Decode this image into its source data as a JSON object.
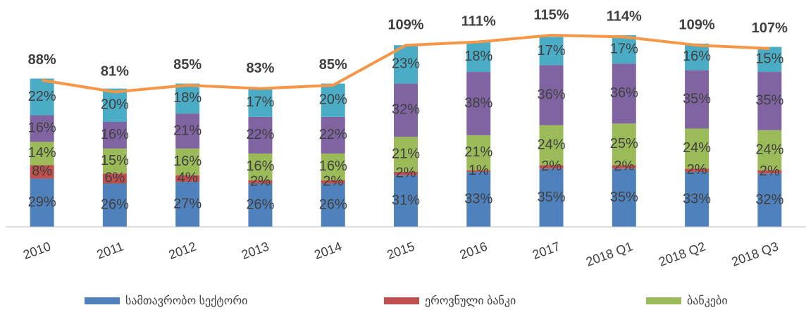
{
  "chart_data": {
    "type": "stacked_bar_line",
    "categories": [
      "2010",
      "2011",
      "2012",
      "2013",
      "2014",
      "2015",
      "2016",
      "2017",
      "2018 Q1",
      "2018 Q2",
      "2018 Q3"
    ],
    "series": [
      {
        "name": "სამთავრობო სექტორი",
        "color": "#4f81bd",
        "values": [
          29,
          26,
          27,
          26,
          26,
          31,
          33,
          35,
          35,
          33,
          32
        ],
        "value_labels": [
          "29%",
          "26%",
          "27%",
          "26%",
          "26%",
          "31%",
          "33%",
          "35%",
          "35%",
          "33%",
          "32%"
        ]
      },
      {
        "name": "ეროვნული ბანკი",
        "color": "#c0504d",
        "values": [
          8,
          6,
          4,
          2,
          2,
          2,
          1,
          2,
          2,
          2,
          2
        ],
        "value_labels": [
          "8%",
          "6%",
          "4%",
          "2%",
          "2%",
          "2%",
          "1%",
          "2%",
          "2%",
          "2%",
          "2%"
        ]
      },
      {
        "name": "ბანკები",
        "color": "#9bbb59",
        "values": [
          14,
          15,
          16,
          16,
          16,
          21,
          21,
          24,
          25,
          24,
          24
        ],
        "value_labels": [
          "14%",
          "15%",
          "16%",
          "16%",
          "16%",
          "21%",
          "21%",
          "24%",
          "25%",
          "24%",
          "24%"
        ]
      },
      {
        "color": "#8064a2",
        "values": [
          16,
          16,
          21,
          22,
          22,
          32,
          38,
          36,
          36,
          35,
          35
        ],
        "value_labels": [
          "16%",
          "16%",
          "21%",
          "22%",
          "22%",
          "32%",
          "38%",
          "36%",
          "36%",
          "35%",
          "35%"
        ]
      },
      {
        "color": "#4bacc6",
        "values": [
          22,
          20,
          18,
          17,
          20,
          23,
          18,
          17,
          17,
          16,
          15
        ],
        "value_labels": [
          "22%",
          "20%",
          "18%",
          "17%",
          "20%",
          "23%",
          "18%",
          "17%",
          "17%",
          "16%",
          "15%"
        ]
      }
    ],
    "line": {
      "color": "#f79646",
      "values": [
        88,
        81,
        85,
        83,
        85,
        109,
        111,
        115,
        114,
        109,
        107
      ],
      "value_labels": [
        "88%",
        "81%",
        "85%",
        "83%",
        "85%",
        "109%",
        "111%",
        "115%",
        "114%",
        "109%",
        "107%"
      ]
    }
  }
}
